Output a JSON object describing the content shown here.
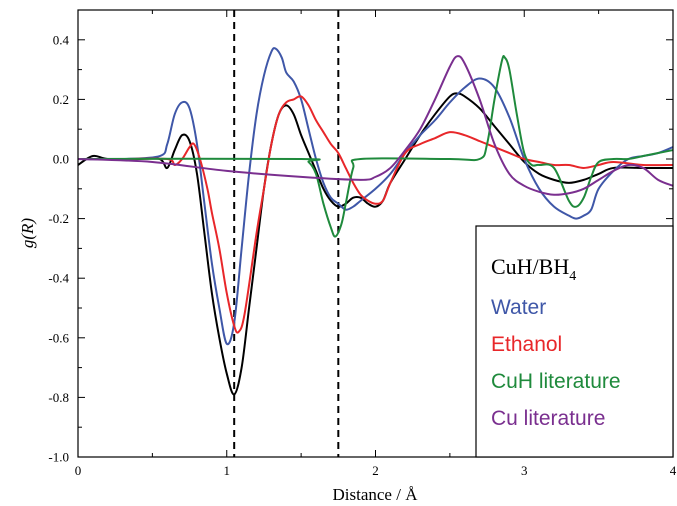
{
  "chart_data": {
    "type": "line",
    "xlabel": "Distance / Å",
    "ylabel": "g(R)",
    "xlim": [
      0,
      4
    ],
    "ylim": [
      -1.0,
      0.5
    ],
    "xticks": [
      "0",
      "1",
      "2",
      "3",
      "4"
    ],
    "yticks": [
      "-1.0",
      "-0.8",
      "-0.6",
      "-0.4",
      "-0.2",
      "0.0",
      "0.2",
      "0.4"
    ],
    "vlines": [
      1.05,
      1.75
    ],
    "legend": {
      "title_main": "CuH/BH",
      "title_sub": "4",
      "position": "bottom-right"
    },
    "series": [
      {
        "color": "#000000",
        "points": [
          [
            0,
            -0.02
          ],
          [
            0.1,
            0.01
          ],
          [
            0.2,
            0
          ],
          [
            0.4,
            0
          ],
          [
            0.55,
            0
          ],
          [
            0.6,
            -0.03
          ],
          [
            0.65,
            0.03
          ],
          [
            0.7,
            0.08
          ],
          [
            0.75,
            0.06
          ],
          [
            0.8,
            -0.05
          ],
          [
            0.85,
            -0.25
          ],
          [
            0.9,
            -0.45
          ],
          [
            0.95,
            -0.6
          ],
          [
            1.0,
            -0.72
          ],
          [
            1.05,
            -0.79
          ],
          [
            1.1,
            -0.7
          ],
          [
            1.15,
            -0.5
          ],
          [
            1.2,
            -0.3
          ],
          [
            1.25,
            -0.1
          ],
          [
            1.3,
            0.05
          ],
          [
            1.35,
            0.15
          ],
          [
            1.4,
            0.18
          ],
          [
            1.45,
            0.15
          ],
          [
            1.5,
            0.08
          ],
          [
            1.55,
            0.02
          ],
          [
            1.6,
            -0.04
          ],
          [
            1.65,
            -0.1
          ],
          [
            1.7,
            -0.14
          ],
          [
            1.75,
            -0.16
          ],
          [
            1.8,
            -0.15
          ],
          [
            1.85,
            -0.13
          ],
          [
            1.9,
            -0.13
          ],
          [
            1.95,
            -0.15
          ],
          [
            2.0,
            -0.16
          ],
          [
            2.05,
            -0.14
          ],
          [
            2.1,
            -0.08
          ],
          [
            2.2,
            0
          ],
          [
            2.3,
            0.08
          ],
          [
            2.4,
            0.15
          ],
          [
            2.5,
            0.21
          ],
          [
            2.55,
            0.22
          ],
          [
            2.6,
            0.21
          ],
          [
            2.7,
            0.17
          ],
          [
            2.8,
            0.11
          ],
          [
            2.9,
            0.05
          ],
          [
            3.0,
            -0.01
          ],
          [
            3.1,
            -0.05
          ],
          [
            3.2,
            -0.07
          ],
          [
            3.3,
            -0.08
          ],
          [
            3.4,
            -0.07
          ],
          [
            3.5,
            -0.05
          ],
          [
            3.6,
            -0.03
          ],
          [
            3.8,
            -0.03
          ],
          [
            4.0,
            -0.03
          ]
        ]
      },
      {
        "name": "Water",
        "color": "#3f57a8",
        "points": [
          [
            0,
            0
          ],
          [
            0.3,
            0
          ],
          [
            0.55,
            0.01
          ],
          [
            0.6,
            0.05
          ],
          [
            0.65,
            0.15
          ],
          [
            0.7,
            0.19
          ],
          [
            0.75,
            0.17
          ],
          [
            0.8,
            0.05
          ],
          [
            0.85,
            -0.15
          ],
          [
            0.9,
            -0.35
          ],
          [
            0.95,
            -0.5
          ],
          [
            1.0,
            -0.62
          ],
          [
            1.05,
            -0.55
          ],
          [
            1.1,
            -0.3
          ],
          [
            1.15,
            -0.05
          ],
          [
            1.2,
            0.15
          ],
          [
            1.25,
            0.28
          ],
          [
            1.3,
            0.36
          ],
          [
            1.33,
            0.37
          ],
          [
            1.37,
            0.34
          ],
          [
            1.4,
            0.29
          ],
          [
            1.45,
            0.26
          ],
          [
            1.5,
            0.2
          ],
          [
            1.55,
            0.1
          ],
          [
            1.6,
            0
          ],
          [
            1.65,
            -0.08
          ],
          [
            1.7,
            -0.13
          ],
          [
            1.75,
            -0.15
          ],
          [
            1.8,
            -0.17
          ],
          [
            1.85,
            -0.16
          ],
          [
            1.9,
            -0.14
          ],
          [
            2.0,
            -0.1
          ],
          [
            2.1,
            -0.05
          ],
          [
            2.2,
            0.02
          ],
          [
            2.3,
            0.08
          ],
          [
            2.4,
            0.13
          ],
          [
            2.5,
            0.19
          ],
          [
            2.6,
            0.24
          ],
          [
            2.7,
            0.27
          ],
          [
            2.8,
            0.24
          ],
          [
            2.9,
            0.14
          ],
          [
            3.0,
            0
          ],
          [
            3.1,
            -0.1
          ],
          [
            3.2,
            -0.16
          ],
          [
            3.3,
            -0.19
          ],
          [
            3.35,
            -0.2
          ],
          [
            3.4,
            -0.19
          ],
          [
            3.45,
            -0.17
          ],
          [
            3.5,
            -0.1
          ],
          [
            3.6,
            -0.04
          ],
          [
            3.7,
            0
          ],
          [
            3.8,
            0.01
          ],
          [
            3.9,
            0.02
          ],
          [
            4.0,
            0.04
          ]
        ]
      },
      {
        "name": "Ethanol",
        "color": "#e8272a",
        "points": [
          [
            0,
            0
          ],
          [
            0.3,
            0
          ],
          [
            0.6,
            0
          ],
          [
            0.65,
            -0.02
          ],
          [
            0.7,
            0
          ],
          [
            0.75,
            0.04
          ],
          [
            0.78,
            0.05
          ],
          [
            0.82,
            0
          ],
          [
            0.87,
            -0.1
          ],
          [
            0.9,
            -0.18
          ],
          [
            0.95,
            -0.3
          ],
          [
            1.0,
            -0.45
          ],
          [
            1.05,
            -0.56
          ],
          [
            1.08,
            -0.58
          ],
          [
            1.12,
            -0.52
          ],
          [
            1.2,
            -0.25
          ],
          [
            1.25,
            -0.1
          ],
          [
            1.3,
            0.05
          ],
          [
            1.35,
            0.15
          ],
          [
            1.4,
            0.19
          ],
          [
            1.45,
            0.2
          ],
          [
            1.5,
            0.21
          ],
          [
            1.55,
            0.18
          ],
          [
            1.6,
            0.13
          ],
          [
            1.65,
            0.09
          ],
          [
            1.7,
            0.05
          ],
          [
            1.75,
            0.02
          ],
          [
            1.8,
            -0.03
          ],
          [
            1.85,
            -0.08
          ],
          [
            1.9,
            -0.12
          ],
          [
            1.95,
            -0.14
          ],
          [
            2.0,
            -0.15
          ],
          [
            2.05,
            -0.14
          ],
          [
            2.1,
            -0.08
          ],
          [
            2.2,
            0.02
          ],
          [
            2.3,
            0.05
          ],
          [
            2.4,
            0.07
          ],
          [
            2.5,
            0.09
          ],
          [
            2.6,
            0.08
          ],
          [
            2.7,
            0.06
          ],
          [
            2.8,
            0.04
          ],
          [
            2.9,
            0.02
          ],
          [
            3.0,
            0
          ],
          [
            3.1,
            -0.01
          ],
          [
            3.2,
            -0.02
          ],
          [
            3.3,
            -0.02
          ],
          [
            3.4,
            -0.03
          ],
          [
            3.5,
            -0.02
          ],
          [
            3.6,
            -0.01
          ],
          [
            3.8,
            -0.02
          ],
          [
            4.0,
            -0.02
          ]
        ]
      },
      {
        "name": "CuH literature",
        "color": "#1f8a3c",
        "points": [
          [
            0,
            0
          ],
          [
            1.5,
            0
          ],
          [
            1.55,
            -0.01
          ],
          [
            1.6,
            -0.05
          ],
          [
            1.65,
            -0.15
          ],
          [
            1.7,
            -0.23
          ],
          [
            1.73,
            -0.26
          ],
          [
            1.77,
            -0.22
          ],
          [
            1.8,
            -0.15
          ],
          [
            1.85,
            -0.03
          ],
          [
            1.9,
            0
          ],
          [
            2.5,
            0
          ],
          [
            2.7,
            0
          ],
          [
            2.75,
            0.05
          ],
          [
            2.8,
            0.2
          ],
          [
            2.85,
            0.33
          ],
          [
            2.87,
            0.34
          ],
          [
            2.9,
            0.3
          ],
          [
            2.95,
            0.15
          ],
          [
            3.0,
            0.02
          ],
          [
            3.05,
            -0.02
          ],
          [
            3.1,
            -0.02
          ],
          [
            3.2,
            -0.03
          ],
          [
            3.3,
            -0.14
          ],
          [
            3.35,
            -0.16
          ],
          [
            3.4,
            -0.13
          ],
          [
            3.45,
            -0.06
          ],
          [
            3.5,
            -0.01
          ],
          [
            3.6,
            0
          ],
          [
            3.7,
            0
          ],
          [
            3.8,
            0.01
          ],
          [
            3.9,
            0.02
          ],
          [
            4.0,
            0.03
          ]
        ]
      },
      {
        "name": "Cu literature",
        "color": "#7a2f8f",
        "points": [
          [
            0,
            0
          ],
          [
            0.5,
            -0.01
          ],
          [
            1.0,
            -0.04
          ],
          [
            1.5,
            -0.06
          ],
          [
            1.9,
            -0.07
          ],
          [
            2.0,
            -0.06
          ],
          [
            2.1,
            -0.03
          ],
          [
            2.2,
            0.03
          ],
          [
            2.3,
            0.1
          ],
          [
            2.4,
            0.2
          ],
          [
            2.5,
            0.31
          ],
          [
            2.55,
            0.345
          ],
          [
            2.6,
            0.32
          ],
          [
            2.7,
            0.2
          ],
          [
            2.8,
            0.05
          ],
          [
            2.9,
            -0.05
          ],
          [
            3.0,
            -0.09
          ],
          [
            3.1,
            -0.11
          ],
          [
            3.2,
            -0.12
          ],
          [
            3.3,
            -0.115
          ],
          [
            3.4,
            -0.1
          ],
          [
            3.5,
            -0.07
          ],
          [
            3.6,
            -0.04
          ],
          [
            3.7,
            -0.02
          ],
          [
            3.8,
            -0.03
          ],
          [
            3.9,
            -0.07
          ],
          [
            4.0,
            -0.09
          ]
        ]
      }
    ]
  }
}
